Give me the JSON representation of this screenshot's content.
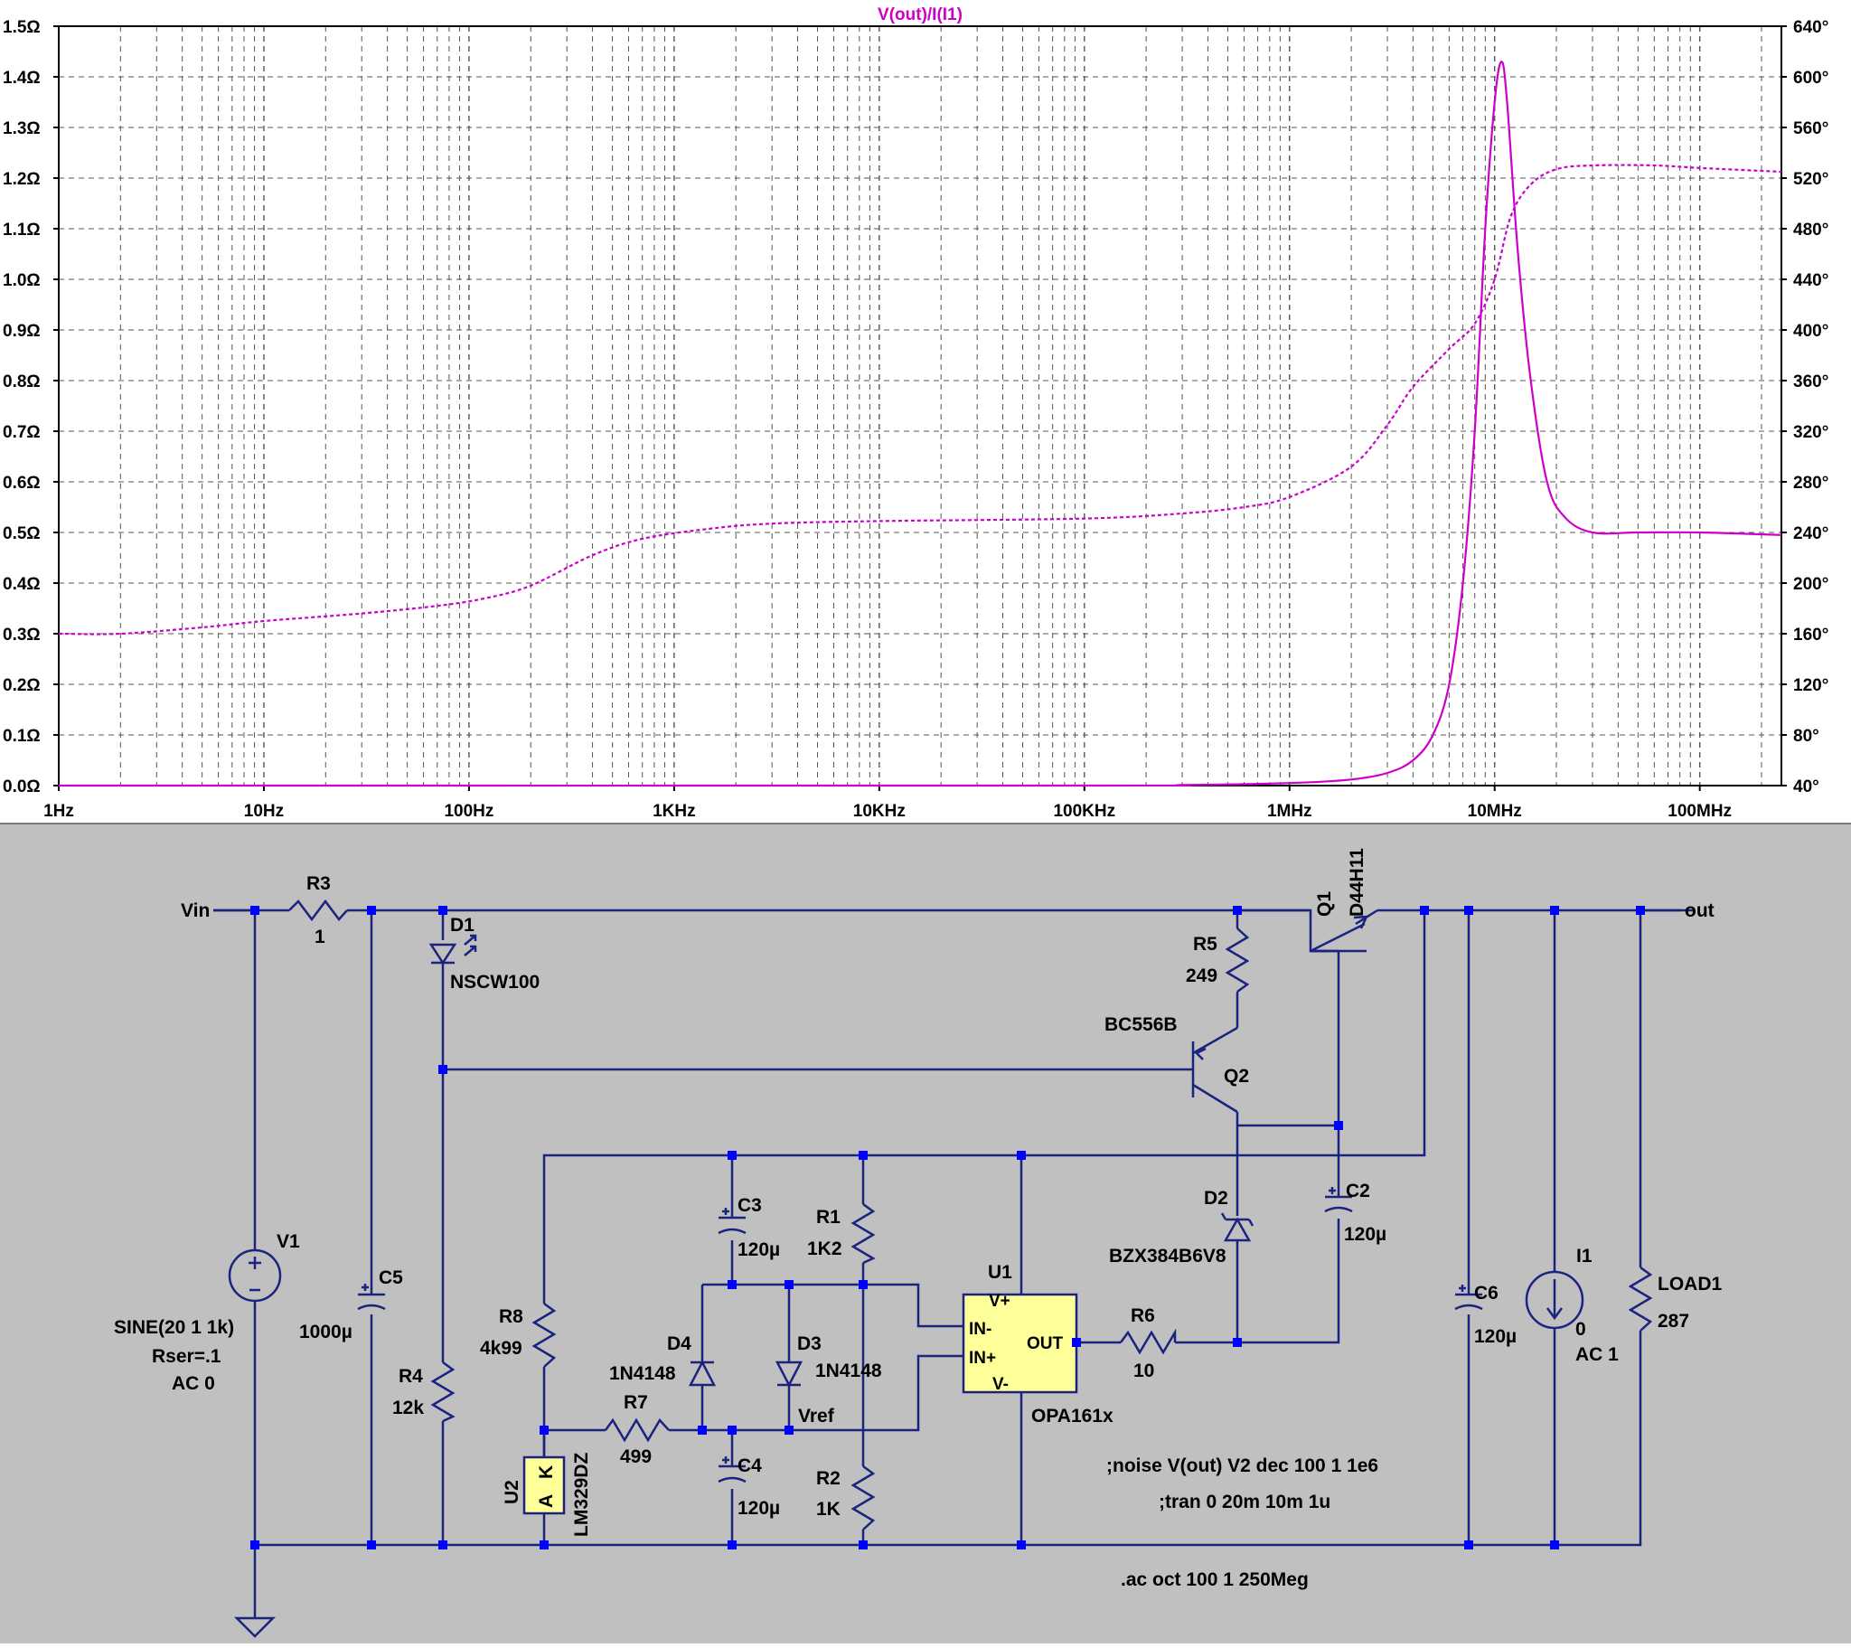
{
  "colors": {
    "trace": "#cc00cc",
    "wire": "#1a237e",
    "junction": "#0000ff",
    "schematic_bg": "#c0c0c0",
    "opamp_fill": "#ffff99"
  },
  "chart_data": {
    "type": "line",
    "title": "V(out)/I(I1)",
    "x_scale": "log",
    "x_range": [
      1,
      250000000
    ],
    "x_ticks": [
      "1Hz",
      "10Hz",
      "100Hz",
      "1KHz",
      "10KHz",
      "100KHz",
      "1MHz",
      "10MHz",
      "100MHz"
    ],
    "y_left_ticks": [
      "0.0Ω",
      "0.1Ω",
      "0.2Ω",
      "0.3Ω",
      "0.4Ω",
      "0.5Ω",
      "0.6Ω",
      "0.7Ω",
      "0.8Ω",
      "0.9Ω",
      "1.0Ω",
      "1.1Ω",
      "1.2Ω",
      "1.3Ω",
      "1.4Ω",
      "1.5Ω"
    ],
    "y_left_range": [
      0,
      1.5
    ],
    "y_right_ticks": [
      "40°",
      "80°",
      "120°",
      "160°",
      "200°",
      "240°",
      "280°",
      "320°",
      "360°",
      "400°",
      "440°",
      "480°",
      "520°",
      "560°",
      "600°",
      "640°"
    ],
    "y_right_range": [
      40,
      640
    ],
    "grid": true,
    "series": [
      {
        "axis": "left",
        "line_style": "solid",
        "points": [
          [
            1,
            0.0
          ],
          [
            100000,
            0.0
          ],
          [
            300000,
            0.001
          ],
          [
            1000000,
            0.005
          ],
          [
            2000000,
            0.012
          ],
          [
            3000000,
            0.025
          ],
          [
            4000000,
            0.05
          ],
          [
            5000000,
            0.1
          ],
          [
            6000000,
            0.2
          ],
          [
            7000000,
            0.4
          ],
          [
            8000000,
            0.7
          ],
          [
            9000000,
            1.1
          ],
          [
            10000000,
            1.35
          ],
          [
            10800000,
            1.43
          ],
          [
            11500000,
            1.35
          ],
          [
            13000000,
            1.05
          ],
          [
            15000000,
            0.8
          ],
          [
            18000000,
            0.6
          ],
          [
            22000000,
            0.53
          ],
          [
            30000000,
            0.5
          ],
          [
            50000000,
            0.5
          ],
          [
            100000000,
            0.5
          ],
          [
            250000000,
            0.495
          ]
        ]
      },
      {
        "axis": "right",
        "line_style": "dashed",
        "points": [
          [
            1,
            160
          ],
          [
            2,
            160
          ],
          [
            5,
            165
          ],
          [
            10,
            170
          ],
          [
            30,
            176
          ],
          [
            70,
            182
          ],
          [
            120,
            188
          ],
          [
            200,
            198
          ],
          [
            400,
            222
          ],
          [
            700,
            235
          ],
          [
            1500,
            243
          ],
          [
            3000,
            247
          ],
          [
            10000,
            249
          ],
          [
            100000,
            251
          ],
          [
            300000,
            255
          ],
          [
            600000,
            260
          ],
          [
            1000000,
            268
          ],
          [
            2000000,
            292
          ],
          [
            3000000,
            325
          ],
          [
            4000000,
            355
          ],
          [
            6000000,
            385
          ],
          [
            8000000,
            405
          ],
          [
            10000000,
            440
          ],
          [
            12000000,
            490
          ],
          [
            15000000,
            515
          ],
          [
            20000000,
            527
          ],
          [
            30000000,
            530
          ],
          [
            60000000,
            530
          ],
          [
            100000000,
            528
          ],
          [
            250000000,
            525
          ]
        ]
      }
    ]
  },
  "schematic": {
    "net_labels": {
      "vin": "Vin",
      "out": "out",
      "vref": "Vref"
    },
    "components": {
      "r3": {
        "ref": "R3",
        "value": "1"
      },
      "d1": {
        "ref": "D1",
        "value": "NSCW100"
      },
      "r5": {
        "ref": "R5",
        "value": "249"
      },
      "q1": {
        "ref": "Q1",
        "value": "D44H11"
      },
      "q2": {
        "ref": "Q2",
        "value": "BC556B"
      },
      "v1": {
        "ref": "V1",
        "line1": "SINE(20 1 1k)",
        "line2": "Rser=.1",
        "line3": "AC 0"
      },
      "c5": {
        "ref": "C5",
        "value": "1000µ"
      },
      "r4": {
        "ref": "R4",
        "value": "12k"
      },
      "r8": {
        "ref": "R8",
        "value": "4k99"
      },
      "u2": {
        "ref": "U2",
        "value": "LM329DZ",
        "pin_a": "A",
        "pin_k": "K"
      },
      "r7": {
        "ref": "R7",
        "value": "499"
      },
      "c3": {
        "ref": "C3",
        "value": "120µ"
      },
      "c4": {
        "ref": "C4",
        "value": "120µ"
      },
      "d4": {
        "ref": "D4",
        "value": "1N4148"
      },
      "d3": {
        "ref": "D3",
        "value": "1N4148"
      },
      "r1": {
        "ref": "R1",
        "value": "1K2"
      },
      "r2": {
        "ref": "R2",
        "value": "1K"
      },
      "u1": {
        "ref": "U1",
        "value": "OPA161x",
        "pin_vp": "V+",
        "pin_inm": "IN-",
        "pin_inp": "IN+",
        "pin_vm": "V-",
        "pin_out": "OUT"
      },
      "r6": {
        "ref": "R6",
        "value": "10"
      },
      "d2": {
        "ref": "D2",
        "value": "BZX384B6V8"
      },
      "c2": {
        "ref": "C2",
        "value": "120µ"
      },
      "c6": {
        "ref": "C6",
        "value": "120µ"
      },
      "i1": {
        "ref": "I1",
        "line1": "0",
        "line2": "AC 1"
      },
      "load1": {
        "ref": "LOAD1",
        "value": "287"
      }
    },
    "directives": {
      "noise": ";noise V(out) V2 dec 100 1 1e6",
      "tran": ";tran 0 20m 10m 1u",
      "ac": ".ac oct 100 1 250Meg"
    }
  }
}
